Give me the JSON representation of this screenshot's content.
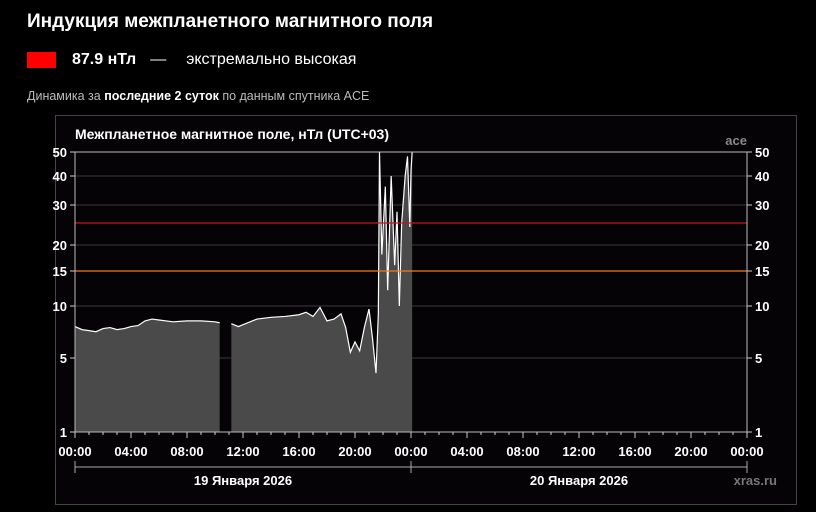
{
  "header": {
    "title": "Индукция межпланетного магнитного поля",
    "value": "87.9 нТл",
    "dash": "—",
    "level": "экстремально высокая",
    "level_color": "#ff0000",
    "subtitle_pre": "Динамика за ",
    "subtitle_bold": "последние 2 суток",
    "subtitle_post": " по данным спутника ACE"
  },
  "chart_data": {
    "type": "area",
    "title": "Межпланетное магнитное поле, нТл (UTC+03)",
    "source_label": "ace",
    "watermark": "xras.ru",
    "yscale": "log-like",
    "ylim": [
      1,
      50
    ],
    "yticks": [
      1,
      5,
      10,
      15,
      20,
      30,
      40,
      50
    ],
    "xticks": [
      "00:00",
      "04:00",
      "08:00",
      "12:00",
      "16:00",
      "20:00",
      "00:00",
      "04:00",
      "08:00",
      "12:00",
      "16:00",
      "20:00",
      "00:00"
    ],
    "xlim_hours": [
      0,
      48
    ],
    "dates": [
      "19 Января 2026",
      "20 Января 2026"
    ],
    "thresholds": [
      {
        "value": 25,
        "color": "#c0142a"
      },
      {
        "value": 15,
        "color": "#f07a1e"
      }
    ],
    "grid": true,
    "series": [
      {
        "color": "#ffffff",
        "fill": "#4a4a4a",
        "points": [
          [
            "19.01 00:00",
            7.6
          ],
          [
            "19.01 00:30",
            7.3
          ],
          [
            "19.01 01:00",
            7.2
          ],
          [
            "19.01 01:30",
            7.1
          ],
          [
            "19.01 02:00",
            7.4
          ],
          [
            "19.01 02:30",
            7.5
          ],
          [
            "19.01 03:00",
            7.3
          ],
          [
            "19.01 03:30",
            7.4
          ],
          [
            "19.01 04:00",
            7.6
          ],
          [
            "19.01 04:30",
            7.7
          ],
          [
            "19.01 05:00",
            8.2
          ],
          [
            "19.01 05:30",
            8.4
          ],
          [
            "19.01 06:00",
            8.3
          ],
          [
            "19.01 07:00",
            8.1
          ],
          [
            "19.01 08:00",
            8.2
          ],
          [
            "19.01 09:00",
            8.2
          ],
          [
            "19.01 10:00",
            8.1
          ],
          [
            "19.01 10:20",
            8.0
          ],
          [
            "19.01 10:21",
            null
          ],
          [
            "19.01 11:09",
            null
          ],
          [
            "19.01 11:10",
            7.9
          ],
          [
            "19.01 11:40",
            7.6
          ],
          [
            "19.01 12:00",
            7.8
          ],
          [
            "19.01 12:40",
            8.2
          ],
          [
            "19.01 13:00",
            8.4
          ],
          [
            "19.01 14:00",
            8.6
          ],
          [
            "19.01 15:00",
            8.7
          ],
          [
            "19.01 16:00",
            8.9
          ],
          [
            "19.01 16:30",
            9.2
          ],
          [
            "19.01 17:00",
            8.7
          ],
          [
            "19.01 17:30",
            9.8
          ],
          [
            "19.01 18:00",
            8.2
          ],
          [
            "19.01 18:30",
            8.4
          ],
          [
            "19.01 19:00",
            9.0
          ],
          [
            "19.01 19:20",
            7.5
          ],
          [
            "19.01 19:40",
            5.4
          ],
          [
            "19.01 20:00",
            6.2
          ],
          [
            "19.01 20:20",
            5.5
          ],
          [
            "19.01 20:40",
            7.5
          ],
          [
            "19.01 21:00",
            9.6
          ],
          [
            "19.01 21:15",
            6.5
          ],
          [
            "19.01 21:30",
            3.6
          ],
          [
            "19.01 21:40",
            9.0
          ],
          [
            "19.01 21:45",
            50
          ],
          [
            "19.01 21:55",
            18
          ],
          [
            "19.01 22:10",
            36
          ],
          [
            "19.01 22:20",
            12
          ],
          [
            "19.01 22:35",
            40
          ],
          [
            "19.01 22:50",
            16
          ],
          [
            "19.01 23:00",
            28
          ],
          [
            "19.01 23:10",
            10
          ],
          [
            "19.01 23:20",
            25
          ],
          [
            "19.01 23:35",
            40
          ],
          [
            "19.01 23:45",
            48
          ],
          [
            "19.01 23:55",
            24
          ],
          [
            "20.01 00:00",
            42
          ],
          [
            "20.01 00:05",
            50
          ]
        ]
      }
    ]
  }
}
